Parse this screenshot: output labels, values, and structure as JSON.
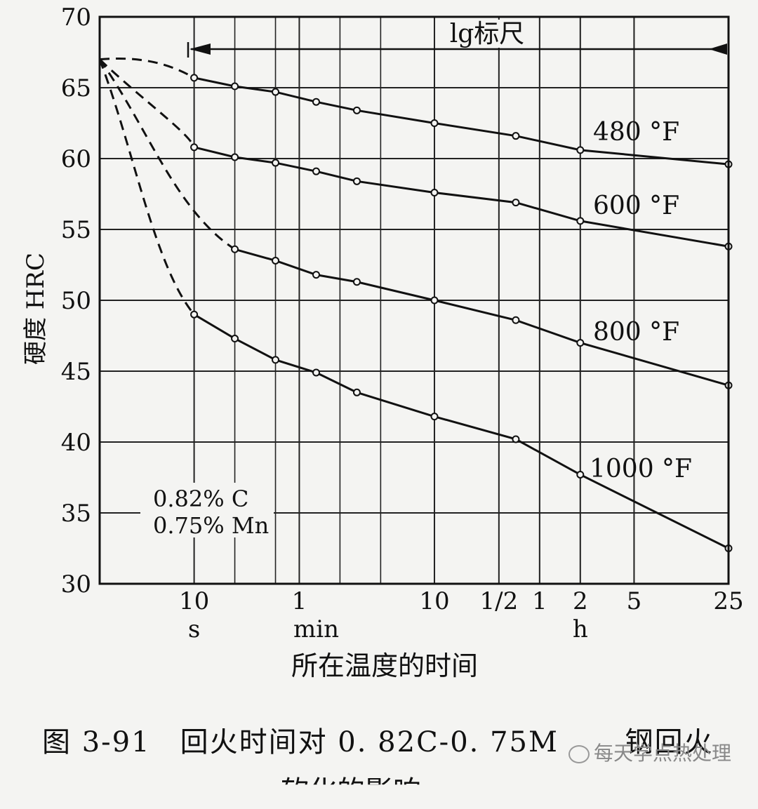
{
  "chart_data": {
    "type": "line",
    "ylabel": "硬度 HRC",
    "xlabel": "所在温度的时间",
    "ylim": [
      30,
      70
    ],
    "yticks": [
      30,
      35,
      40,
      45,
      50,
      55,
      60,
      65,
      70
    ],
    "x_scale": "log",
    "x_range_s": [
      2,
      90000
    ],
    "x_scale_note": "lg标尺",
    "x_ticks": [
      {
        "label": "10",
        "seconds": 10
      },
      {
        "label": "1",
        "seconds": 60
      },
      {
        "label": "10",
        "seconds": 600
      },
      {
        "label": "1/2",
        "seconds": 1800
      },
      {
        "label": "1",
        "seconds": 3600
      },
      {
        "label": "2",
        "seconds": 7200
      },
      {
        "label": "5",
        "seconds": 18000
      },
      {
        "label": "25",
        "seconds": 90000
      }
    ],
    "x_units": [
      {
        "label": "s",
        "seconds": 10
      },
      {
        "label": "min",
        "seconds": 80
      },
      {
        "label": "h",
        "seconds": 7200
      }
    ],
    "minor_gridlines_s": [
      20,
      40,
      120,
      240,
      3600,
      7200,
      18000
    ],
    "initial_hardness": 67,
    "composition": [
      "0.82% C",
      "0.75% Mn"
    ],
    "series": [
      {
        "name": "480°F",
        "label": "480 °F",
        "dashed_until_s": 10,
        "x_s": [
          10,
          20,
          40,
          80,
          160,
          600,
          2400,
          7200,
          90000
        ],
        "y": [
          65.7,
          65.1,
          64.7,
          64.0,
          63.4,
          62.5,
          61.6,
          60.6,
          59.6
        ]
      },
      {
        "name": "600°F",
        "label": "600 °F",
        "dashed_until_s": 10,
        "x_s": [
          10,
          20,
          40,
          80,
          160,
          600,
          2400,
          7200,
          90000
        ],
        "y": [
          60.8,
          60.1,
          59.7,
          59.1,
          58.4,
          57.6,
          56.9,
          55.6,
          53.8
        ]
      },
      {
        "name": "800°F",
        "label": "800 °F",
        "dashed_until_s": 20,
        "x_s": [
          20,
          40,
          80,
          160,
          600,
          2400,
          7200,
          90000
        ],
        "y": [
          53.6,
          52.8,
          51.8,
          51.3,
          50.0,
          48.6,
          47.0,
          44.0
        ]
      },
      {
        "name": "1000°F",
        "label": "1000 °F",
        "dashed_until_s": 10,
        "x_s": [
          10,
          20,
          40,
          80,
          160,
          600,
          2400,
          7200,
          90000
        ],
        "y": [
          49.0,
          47.3,
          45.8,
          44.9,
          43.5,
          41.8,
          40.2,
          37.7,
          32.5
        ]
      }
    ]
  },
  "caption": {
    "line1": "图 3-91　回火时间对 0. 82C-0. 75M",
    "line1_tail": "钢回火",
    "line2": "软化的影响"
  },
  "watermark": "每天学点热处理"
}
